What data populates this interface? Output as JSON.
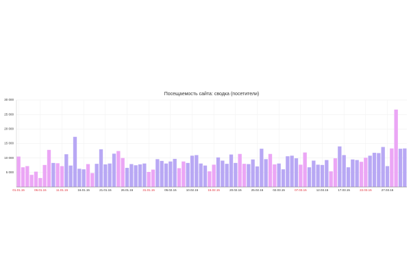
{
  "chart_data": {
    "type": "bar",
    "title": "Посещаемость сайта: сводка (посетители)",
    "categories": [
      "01.01.15",
      null,
      null,
      null,
      null,
      "06.01.15",
      null,
      null,
      null,
      null,
      "11.01.15",
      null,
      null,
      null,
      null,
      "16.01.15",
      null,
      null,
      null,
      null,
      "21.01.15",
      null,
      null,
      null,
      null,
      "26.01.15",
      null,
      null,
      null,
      null,
      "31.01.15",
      null,
      null,
      null,
      null,
      "05.02.15",
      null,
      null,
      null,
      null,
      "10.02.15",
      null,
      null,
      null,
      null,
      "15.02.15",
      null,
      null,
      null,
      null,
      "20.02.15",
      null,
      null,
      null,
      null,
      "25.02.15",
      null,
      null,
      null,
      null,
      "02.03.15",
      null,
      null,
      null,
      null,
      "07.03.15",
      null,
      null,
      null,
      null,
      "12.03.15",
      null,
      null,
      null,
      null,
      "17.03.15",
      null,
      null,
      null,
      null,
      "22.03.15",
      null,
      null,
      null,
      null,
      "27.03.15",
      null,
      null,
      null,
      null
    ],
    "values": [
      10500,
      6800,
      7200,
      4200,
      5300,
      3100,
      7600,
      12800,
      8300,
      8200,
      7200,
      11300,
      7400,
      17300,
      6300,
      6100,
      7900,
      4800,
      8000,
      13000,
      7800,
      8100,
      11500,
      12400,
      10000,
      6600,
      7900,
      7500,
      7800,
      8100,
      5200,
      6000,
      9600,
      9000,
      8100,
      8800,
      9700,
      6500,
      8800,
      8300,
      10800,
      11000,
      8100,
      7400,
      5400,
      7700,
      10200,
      9100,
      8000,
      11200,
      8300,
      11400,
      8000,
      7900,
      9500,
      7100,
      13200,
      9600,
      11400,
      7800,
      8100,
      6100,
      10600,
      10800,
      9900,
      7700,
      11900,
      6800,
      9100,
      7700,
      7600,
      9300,
      5400,
      9900,
      14000,
      11000,
      6800,
      9500,
      9300,
      8700,
      10100,
      10800,
      11800,
      11700,
      13800,
      7200,
      13300,
      26700,
      13200,
      13300
    ],
    "bar_colors": [
      "#eba6f5",
      "#eba6f5",
      "#eba6f5",
      "#eba6f5",
      "#eba6f5",
      "#eba6f5",
      "#eba6f5",
      "#eba6f5",
      "#b8a8f4",
      "#eba6f5",
      "#eba6f5",
      "#b8a8f4",
      "#b8a8f4",
      "#b8a8f4",
      "#b8a8f4",
      "#b8a8f4",
      "#eba6f5",
      "#eba6f5",
      "#b8a8f4",
      "#b8a8f4",
      "#b8a8f4",
      "#b8a8f4",
      "#b8a8f4",
      "#eba6f5",
      "#eba6f5",
      "#b8a8f4",
      "#b8a8f4",
      "#b8a8f4",
      "#b8a8f4",
      "#b8a8f4",
      "#eba6f5",
      "#eba6f5",
      "#b8a8f4",
      "#b8a8f4",
      "#b8a8f4",
      "#b8a8f4",
      "#b8a8f4",
      "#eba6f5",
      "#eba6f5",
      "#b8a8f4",
      "#b8a8f4",
      "#b8a8f4",
      "#b8a8f4",
      "#b8a8f4",
      "#eba6f5",
      "#eba6f5",
      "#b8a8f4",
      "#b8a8f4",
      "#b8a8f4",
      "#b8a8f4",
      "#b8a8f4",
      "#eba6f5",
      "#eba6f5",
      "#b8a8f4",
      "#b8a8f4",
      "#b8a8f4",
      "#b8a8f4",
      "#b8a8f4",
      "#eba6f5",
      "#eba6f5",
      "#b8a8f4",
      "#b8a8f4",
      "#b8a8f4",
      "#b8a8f4",
      "#b8a8f4",
      "#eba6f5",
      "#eba6f5",
      "#b8a8f4",
      "#b8a8f4",
      "#b8a8f4",
      "#b8a8f4",
      "#b8a8f4",
      "#eba6f5",
      "#eba6f5",
      "#b8a8f4",
      "#b8a8f4",
      "#b8a8f4",
      "#b8a8f4",
      "#b8a8f4",
      "#eba6f5",
      "#eba6f5",
      "#b8a8f4",
      "#b8a8f4",
      "#b8a8f4",
      "#b8a8f4",
      "#b8a8f4",
      "#eba6f5",
      "#eba6f5",
      "#b8a8f4",
      "#b8a8f4"
    ],
    "ylim": [
      0,
      30000
    ],
    "yticks": [
      {
        "value": 5000,
        "label": "5 000"
      },
      {
        "value": 10000,
        "label": "10 000"
      },
      {
        "value": 15000,
        "label": "15 000"
      },
      {
        "value": 20000,
        "label": "20 000"
      },
      {
        "value": 25000,
        "label": "25 000"
      },
      {
        "value": 30000,
        "label": "30 000"
      }
    ],
    "grid": true
  }
}
